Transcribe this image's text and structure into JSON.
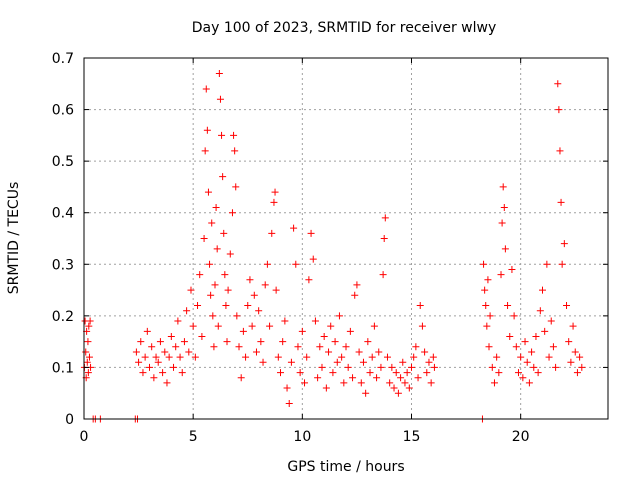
{
  "chart_data": {
    "type": "scatter",
    "title": "Day 100 of 2023, SRMTID for receiver wlwy",
    "xlabel": "GPS time / hours",
    "ylabel": "SRMTID / TECUs",
    "xlim": [
      0,
      24
    ],
    "ylim": [
      0,
      0.7
    ],
    "xticks": [
      0,
      5,
      10,
      15,
      20
    ],
    "xtick_labels": [
      "0",
      "5",
      "10",
      "15",
      "20"
    ],
    "yticks": [
      0,
      0.1,
      0.2,
      0.3,
      0.4,
      0.5,
      0.6,
      0.7
    ],
    "ytick_labels": [
      "0",
      "0.1",
      "0.2",
      "0.3",
      "0.4",
      "0.5",
      "0.6",
      "0.7"
    ],
    "grid": true,
    "marker": "+",
    "color": "#ff0000",
    "series": [
      {
        "name": "SRMTID",
        "points": [
          [
            0.02,
            0.1
          ],
          [
            0.05,
            0.19
          ],
          [
            0.08,
            0.13
          ],
          [
            0.1,
            0.08
          ],
          [
            0.12,
            0.17
          ],
          [
            0.15,
            0.11
          ],
          [
            0.18,
            0.15
          ],
          [
            0.2,
            0.09
          ],
          [
            0.22,
            0.18
          ],
          [
            0.25,
            0.12
          ],
          [
            0.28,
            0.19
          ],
          [
            0.3,
            0.1
          ],
          [
            0.42,
            0.0
          ],
          [
            0.52,
            0.0
          ],
          [
            0.75,
            0.0
          ],
          [
            2.35,
            0.0
          ],
          [
            2.45,
            0.0
          ],
          [
            18.25,
            0.0
          ],
          [
            2.4,
            0.13
          ],
          [
            2.5,
            0.11
          ],
          [
            2.6,
            0.15
          ],
          [
            2.7,
            0.09
          ],
          [
            2.8,
            0.12
          ],
          [
            2.9,
            0.17
          ],
          [
            3.0,
            0.1
          ],
          [
            3.1,
            0.14
          ],
          [
            3.2,
            0.08
          ],
          [
            3.3,
            0.12
          ],
          [
            3.4,
            0.11
          ],
          [
            3.5,
            0.15
          ],
          [
            3.6,
            0.09
          ],
          [
            3.7,
            0.13
          ],
          [
            3.8,
            0.07
          ],
          [
            3.9,
            0.12
          ],
          [
            4.0,
            0.16
          ],
          [
            4.1,
            0.1
          ],
          [
            4.2,
            0.14
          ],
          [
            4.3,
            0.19
          ],
          [
            4.4,
            0.12
          ],
          [
            4.5,
            0.09
          ],
          [
            4.6,
            0.15
          ],
          [
            4.7,
            0.21
          ],
          [
            4.8,
            0.13
          ],
          [
            4.9,
            0.25
          ],
          [
            5.0,
            0.18
          ],
          [
            5.1,
            0.12
          ],
          [
            5.2,
            0.22
          ],
          [
            5.3,
            0.28
          ],
          [
            5.4,
            0.16
          ],
          [
            5.5,
            0.35
          ],
          [
            5.55,
            0.52
          ],
          [
            5.6,
            0.64
          ],
          [
            5.65,
            0.56
          ],
          [
            5.7,
            0.44
          ],
          [
            5.75,
            0.3
          ],
          [
            5.8,
            0.24
          ],
          [
            5.85,
            0.38
          ],
          [
            5.9,
            0.2
          ],
          [
            5.95,
            0.14
          ],
          [
            6.0,
            0.26
          ],
          [
            6.05,
            0.41
          ],
          [
            6.1,
            0.33
          ],
          [
            6.15,
            0.18
          ],
          [
            6.2,
            0.67
          ],
          [
            6.25,
            0.62
          ],
          [
            6.3,
            0.55
          ],
          [
            6.35,
            0.47
          ],
          [
            6.4,
            0.36
          ],
          [
            6.45,
            0.28
          ],
          [
            6.5,
            0.22
          ],
          [
            6.55,
            0.15
          ],
          [
            6.6,
            0.25
          ],
          [
            6.7,
            0.32
          ],
          [
            6.8,
            0.4
          ],
          [
            6.85,
            0.55
          ],
          [
            6.9,
            0.52
          ],
          [
            6.95,
            0.45
          ],
          [
            7.0,
            0.2
          ],
          [
            7.1,
            0.14
          ],
          [
            7.2,
            0.08
          ],
          [
            7.3,
            0.17
          ],
          [
            7.4,
            0.12
          ],
          [
            7.5,
            0.22
          ],
          [
            7.6,
            0.27
          ],
          [
            7.7,
            0.18
          ],
          [
            7.8,
            0.24
          ],
          [
            7.9,
            0.13
          ],
          [
            8.0,
            0.21
          ],
          [
            8.1,
            0.15
          ],
          [
            8.2,
            0.11
          ],
          [
            8.3,
            0.26
          ],
          [
            8.4,
            0.3
          ],
          [
            8.5,
            0.18
          ],
          [
            8.6,
            0.36
          ],
          [
            8.7,
            0.42
          ],
          [
            8.75,
            0.44
          ],
          [
            8.8,
            0.25
          ],
          [
            8.9,
            0.12
          ],
          [
            9.0,
            0.09
          ],
          [
            9.1,
            0.15
          ],
          [
            9.2,
            0.19
          ],
          [
            9.3,
            0.06
          ],
          [
            9.4,
            0.03
          ],
          [
            9.5,
            0.11
          ],
          [
            9.6,
            0.37
          ],
          [
            9.7,
            0.3
          ],
          [
            9.8,
            0.14
          ],
          [
            9.9,
            0.09
          ],
          [
            10.0,
            0.17
          ],
          [
            10.1,
            0.07
          ],
          [
            10.2,
            0.12
          ],
          [
            10.3,
            0.27
          ],
          [
            10.4,
            0.36
          ],
          [
            10.5,
            0.31
          ],
          [
            10.6,
            0.19
          ],
          [
            10.7,
            0.08
          ],
          [
            10.8,
            0.14
          ],
          [
            10.9,
            0.1
          ],
          [
            11.0,
            0.16
          ],
          [
            11.1,
            0.06
          ],
          [
            11.2,
            0.13
          ],
          [
            11.3,
            0.18
          ],
          [
            11.4,
            0.09
          ],
          [
            11.5,
            0.15
          ],
          [
            11.6,
            0.11
          ],
          [
            11.7,
            0.2
          ],
          [
            11.8,
            0.12
          ],
          [
            11.9,
            0.07
          ],
          [
            12.0,
            0.14
          ],
          [
            12.1,
            0.1
          ],
          [
            12.2,
            0.17
          ],
          [
            12.3,
            0.08
          ],
          [
            12.4,
            0.24
          ],
          [
            12.5,
            0.26
          ],
          [
            12.6,
            0.13
          ],
          [
            12.7,
            0.07
          ],
          [
            12.8,
            0.11
          ],
          [
            12.9,
            0.05
          ],
          [
            13.0,
            0.15
          ],
          [
            13.1,
            0.09
          ],
          [
            13.2,
            0.12
          ],
          [
            13.3,
            0.18
          ],
          [
            13.4,
            0.08
          ],
          [
            13.5,
            0.13
          ],
          [
            13.6,
            0.1
          ],
          [
            13.7,
            0.28
          ],
          [
            13.75,
            0.35
          ],
          [
            13.8,
            0.39
          ],
          [
            13.9,
            0.12
          ],
          [
            14.0,
            0.07
          ],
          [
            14.1,
            0.1
          ],
          [
            14.2,
            0.06
          ],
          [
            14.3,
            0.09
          ],
          [
            14.4,
            0.05
          ],
          [
            14.5,
            0.08
          ],
          [
            14.6,
            0.11
          ],
          [
            14.7,
            0.07
          ],
          [
            14.8,
            0.09
          ],
          [
            14.9,
            0.06
          ],
          [
            15.0,
            0.1
          ],
          [
            15.1,
            0.12
          ],
          [
            15.2,
            0.14
          ],
          [
            15.3,
            0.08
          ],
          [
            15.4,
            0.22
          ],
          [
            15.5,
            0.18
          ],
          [
            15.6,
            0.13
          ],
          [
            15.7,
            0.09
          ],
          [
            15.8,
            0.11
          ],
          [
            15.9,
            0.07
          ],
          [
            16.0,
            0.12
          ],
          [
            16.05,
            0.1
          ],
          [
            18.3,
            0.3
          ],
          [
            18.35,
            0.25
          ],
          [
            18.4,
            0.22
          ],
          [
            18.45,
            0.18
          ],
          [
            18.5,
            0.27
          ],
          [
            18.55,
            0.14
          ],
          [
            18.6,
            0.2
          ],
          [
            18.7,
            0.1
          ],
          [
            18.8,
            0.07
          ],
          [
            18.9,
            0.12
          ],
          [
            19.0,
            0.09
          ],
          [
            19.1,
            0.28
          ],
          [
            19.15,
            0.38
          ],
          [
            19.2,
            0.45
          ],
          [
            19.25,
            0.41
          ],
          [
            19.3,
            0.33
          ],
          [
            19.4,
            0.22
          ],
          [
            19.5,
            0.16
          ],
          [
            19.6,
            0.29
          ],
          [
            19.7,
            0.2
          ],
          [
            19.8,
            0.14
          ],
          [
            19.9,
            0.09
          ],
          [
            20.0,
            0.12
          ],
          [
            20.1,
            0.08
          ],
          [
            20.2,
            0.15
          ],
          [
            20.3,
            0.11
          ],
          [
            20.4,
            0.07
          ],
          [
            20.5,
            0.13
          ],
          [
            20.6,
            0.1
          ],
          [
            20.7,
            0.16
          ],
          [
            20.8,
            0.09
          ],
          [
            20.9,
            0.21
          ],
          [
            21.0,
            0.25
          ],
          [
            21.1,
            0.17
          ],
          [
            21.2,
            0.3
          ],
          [
            21.3,
            0.12
          ],
          [
            21.4,
            0.19
          ],
          [
            21.5,
            0.14
          ],
          [
            21.6,
            0.1
          ],
          [
            21.7,
            0.65
          ],
          [
            21.75,
            0.6
          ],
          [
            21.8,
            0.52
          ],
          [
            21.85,
            0.42
          ],
          [
            21.9,
            0.3
          ],
          [
            22.0,
            0.34
          ],
          [
            22.1,
            0.22
          ],
          [
            22.2,
            0.15
          ],
          [
            22.3,
            0.11
          ],
          [
            22.4,
            0.18
          ],
          [
            22.5,
            0.13
          ],
          [
            22.6,
            0.09
          ],
          [
            22.7,
            0.12
          ],
          [
            22.8,
            0.1
          ]
        ]
      }
    ]
  }
}
